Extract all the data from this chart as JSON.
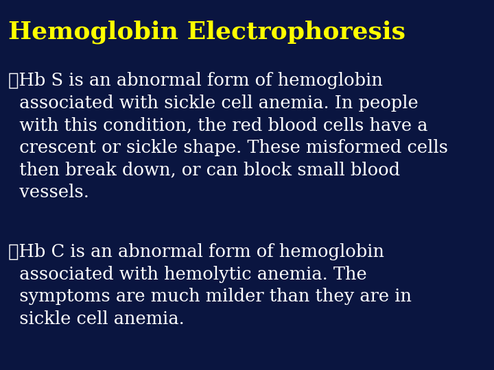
{
  "title": "Hemoglobin Electrophoresis",
  "title_color": "#FFFF00",
  "title_fontsize": 26,
  "background_color": "#0A1540",
  "text_color": "#FFFFFF",
  "bullet1_line1": "➤Hb S is an abnormal form of hemoglobin",
  "bullet1_line2": "  associated with sickle cell anemia. In people",
  "bullet1_line3": "  with this condition, the red blood cells have a",
  "bullet1_line4": "  crescent or sickle shape. These misformed cells",
  "bullet1_line5": "  then break down, or can block small blood",
  "bullet1_line6": "  vessels.",
  "bullet2_line1": "➤Hb C is an abnormal form of hemoglobin",
  "bullet2_line2": "  associated with hemolytic anemia. The",
  "bullet2_line3": "  symptoms are much milder than they are in",
  "bullet2_line4": "  sickle cell anemia.",
  "font_family": "DejaVu Serif",
  "body_fontsize": 18.5,
  "figwidth": 7.2,
  "figheight": 5.4,
  "dpi": 100
}
